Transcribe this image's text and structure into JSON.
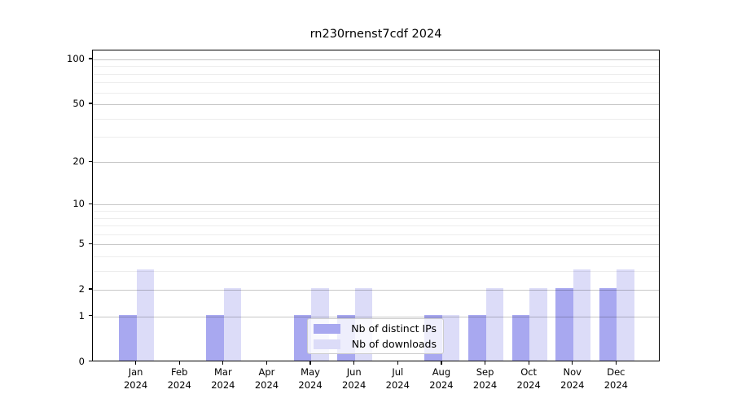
{
  "title": "rn230rnenst7cdf 2024",
  "chart_data": {
    "type": "bar",
    "title": "rn230rnenst7cdf 2024",
    "categories": [
      "Jan",
      "Feb",
      "Mar",
      "Apr",
      "May",
      "Jun",
      "Jul",
      "Aug",
      "Sep",
      "Oct",
      "Nov",
      "Dec"
    ],
    "x_tick_second_line": "2024",
    "series": [
      {
        "key": "ips",
        "name": "Nb of distinct IPs",
        "color": "#a8a8f0",
        "values": [
          1,
          0,
          1,
          0,
          1,
          1,
          0,
          1,
          1,
          1,
          2,
          2
        ]
      },
      {
        "key": "downloads",
        "name": "Nb of downloads",
        "color": "#dcdcf8",
        "values": [
          3,
          0,
          2,
          0,
          2,
          2,
          0,
          1,
          2,
          2,
          3,
          3
        ]
      }
    ],
    "xlabel": "",
    "ylabel": "",
    "y_scale": "log1p",
    "y_major_ticks": [
      0,
      1,
      2,
      5,
      10,
      20,
      50,
      100
    ],
    "y_minor_ticks": [
      3,
      4,
      6,
      7,
      8,
      9,
      30,
      40,
      60,
      70,
      80,
      90
    ],
    "ylim": [
      0,
      115
    ],
    "grid": true,
    "legend_position": "lower center"
  },
  "colors": {
    "bar_ips": "#a8a8f0",
    "bar_downloads": "#dcdcf8",
    "grid_major": "rgba(0,0,0,0.22)",
    "grid_minor": "rgba(0,0,0,0.07)",
    "spine": "#000000",
    "legend_border": "#cccccc"
  }
}
